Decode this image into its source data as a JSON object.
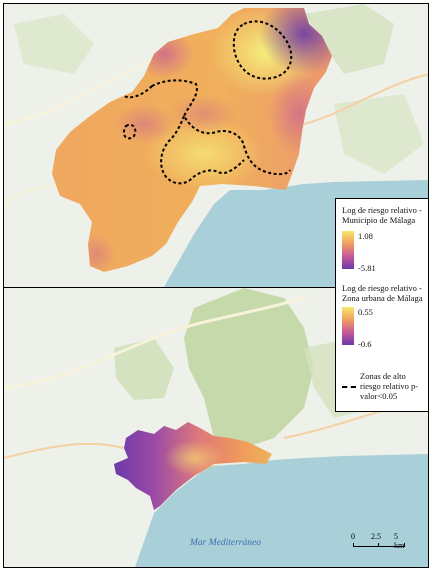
{
  "legend": {
    "municipal_title": "Log de riesgo relativo - Municipio de Málaga",
    "municipal_max": "1.08",
    "municipal_min": "-5.81",
    "urban_title": "Log de riesgo relativo - Zona urbana de Málaga",
    "urban_max": "0.55",
    "urban_min": "-0.6",
    "high_risk_label": "Zonas de alto riesgo relativo p-valor<0.05"
  },
  "colors": {
    "ramp_high": "#f6e86a",
    "ramp_mid": "#ef9f60",
    "ramp_low": "#7a3fa8",
    "sea": "#a9cfd8",
    "land": "#eef0ea",
    "vegetation": "#cbdcb3"
  },
  "map": {
    "sea_label": "Mar Mediterráneo",
    "scale_labels": [
      "0",
      "2.5",
      "5 km"
    ]
  }
}
